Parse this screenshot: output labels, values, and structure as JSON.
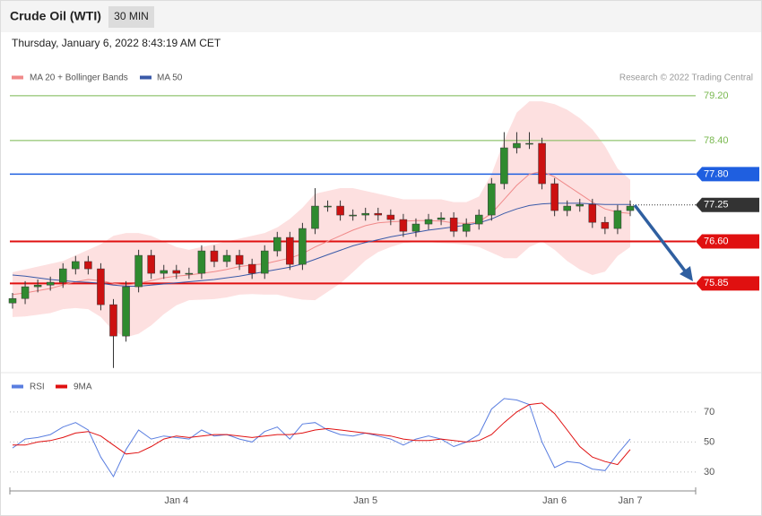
{
  "header": {
    "title": "Crude Oil (WTI)",
    "interval": "30 MIN",
    "timestamp": "Thursday, January 6, 2022 8:43:19 AM CET",
    "credit": "Research © 2022 Trading Central"
  },
  "chart_data": [
    {
      "type": "candlestick",
      "up_color": "#2f8a2f",
      "down_color": "#cc1111",
      "band_color": "#fde0e0",
      "ylim": [
        74.32,
        79.39
      ],
      "open": [
        75.5,
        75.58,
        75.79,
        75.82,
        75.87,
        76.11,
        76.24,
        76.11,
        75.47,
        74.91,
        75.79,
        76.35,
        76.03,
        76.08,
        76.03,
        76.03,
        76.43,
        76.24,
        76.35,
        76.19,
        76.03,
        76.43,
        76.67,
        76.19,
        76.83,
        77.23,
        77.23,
        77.07,
        77.07,
        77.1,
        77.07,
        76.99,
        76.78,
        76.91,
        76.99,
        77.02,
        76.78,
        76.91,
        77.07,
        77.63,
        78.27,
        78.35,
        78.35,
        77.63,
        77.15,
        77.23,
        77.26,
        76.94,
        76.83,
        77.15
      ],
      "high": [
        75.68,
        75.89,
        75.92,
        75.97,
        76.21,
        76.34,
        76.34,
        76.21,
        75.57,
        75.89,
        76.45,
        76.45,
        76.18,
        76.18,
        76.13,
        76.53,
        76.53,
        76.45,
        76.45,
        76.29,
        76.53,
        76.77,
        76.77,
        76.93,
        77.55,
        77.33,
        77.33,
        77.17,
        77.2,
        77.2,
        77.17,
        77.09,
        77.01,
        77.09,
        77.12,
        77.12,
        77.01,
        77.17,
        77.73,
        78.55,
        78.55,
        78.55,
        78.45,
        77.73,
        77.33,
        77.36,
        77.36,
        77.04,
        77.25,
        77.33
      ],
      "low": [
        75.4,
        75.48,
        75.69,
        75.72,
        75.77,
        76.01,
        76.01,
        75.37,
        74.34,
        74.81,
        75.69,
        75.93,
        75.93,
        75.93,
        75.93,
        75.93,
        76.14,
        76.14,
        76.09,
        75.93,
        75.93,
        76.33,
        76.09,
        76.09,
        76.73,
        77.13,
        76.97,
        76.97,
        76.97,
        76.97,
        76.89,
        76.68,
        76.68,
        76.81,
        76.89,
        76.68,
        76.68,
        76.81,
        76.97,
        77.53,
        78.17,
        78.25,
        77.53,
        77.05,
        77.05,
        77.13,
        76.84,
        76.73,
        76.73,
        77.05
      ],
      "close": [
        75.58,
        75.79,
        75.82,
        75.87,
        76.11,
        76.24,
        76.11,
        75.47,
        74.91,
        75.79,
        76.35,
        76.03,
        76.08,
        76.03,
        76.03,
        76.43,
        76.24,
        76.35,
        76.19,
        76.03,
        76.43,
        76.67,
        76.19,
        76.83,
        77.23,
        77.23,
        77.07,
        77.07,
        77.1,
        77.07,
        76.99,
        76.78,
        76.91,
        76.99,
        77.02,
        76.78,
        76.91,
        77.07,
        77.63,
        78.27,
        78.35,
        78.35,
        77.63,
        77.15,
        77.23,
        77.26,
        76.94,
        76.83,
        77.15,
        77.23
      ],
      "series": [
        {
          "name": "MA 20 + Bollinger Bands",
          "color": "#f08a8a",
          "values": [
            75.65,
            75.68,
            75.72,
            75.76,
            75.82,
            75.88,
            75.92,
            75.9,
            75.85,
            75.82,
            75.85,
            75.9,
            75.95,
            75.98,
            76.0,
            76.03,
            76.06,
            76.1,
            76.15,
            76.18,
            76.2,
            76.25,
            76.3,
            76.38,
            76.5,
            76.6,
            76.7,
            76.8,
            76.88,
            76.93,
            76.95,
            76.96,
            76.97,
            76.97,
            76.96,
            76.93,
            76.92,
            76.95,
            77.1,
            77.35,
            77.6,
            77.8,
            77.85,
            77.75,
            77.6,
            77.45,
            77.3,
            77.18,
            77.12,
            77.1
          ],
          "upper": [
            76.05,
            76.1,
            76.15,
            76.2,
            76.25,
            76.35,
            76.45,
            76.55,
            76.7,
            76.75,
            76.75,
            76.7,
            76.6,
            76.5,
            76.45,
            76.5,
            76.55,
            76.6,
            76.65,
            76.7,
            76.75,
            76.85,
            77.0,
            77.2,
            77.45,
            77.5,
            77.55,
            77.55,
            77.5,
            77.45,
            77.4,
            77.35,
            77.35,
            77.35,
            77.35,
            77.3,
            77.3,
            77.4,
            77.8,
            78.4,
            78.9,
            79.1,
            79.1,
            79.05,
            78.95,
            78.8,
            78.6,
            78.3,
            77.9,
            77.7
          ],
          "lower": [
            75.25,
            75.26,
            75.29,
            75.32,
            75.39,
            75.41,
            75.39,
            75.25,
            75.0,
            74.89,
            74.95,
            75.1,
            75.3,
            75.46,
            75.55,
            75.56,
            75.57,
            75.6,
            75.65,
            75.66,
            75.65,
            75.65,
            75.6,
            75.56,
            75.55,
            75.7,
            75.85,
            76.05,
            76.26,
            76.41,
            76.5,
            76.57,
            76.59,
            76.59,
            76.57,
            76.56,
            76.54,
            76.5,
            76.4,
            76.3,
            76.3,
            76.5,
            76.6,
            76.45,
            76.25,
            76.1,
            76.0,
            76.06,
            76.34,
            76.5
          ]
        },
        {
          "name": "MA 50",
          "color": "#3a5aa8",
          "values": [
            76.0,
            75.98,
            75.95,
            75.92,
            75.9,
            75.88,
            75.87,
            75.85,
            75.82,
            75.8,
            75.8,
            75.82,
            75.84,
            75.86,
            75.88,
            75.9,
            75.92,
            75.95,
            75.98,
            76.02,
            76.06,
            76.1,
            76.14,
            76.2,
            76.28,
            76.36,
            76.44,
            76.52,
            76.58,
            76.63,
            76.68,
            76.72,
            76.76,
            76.8,
            76.83,
            76.86,
            76.89,
            76.93,
            77.0,
            77.1,
            77.18,
            77.24,
            77.27,
            77.28,
            77.28,
            77.28,
            77.27,
            77.26,
            77.26,
            77.26
          ]
        }
      ],
      "levels": [
        {
          "value": 79.2,
          "label": "79.20",
          "color": "#79b84f",
          "box": false,
          "style": "thin"
        },
        {
          "value": 78.4,
          "label": "78.40",
          "color": "#79b84f",
          "box": false,
          "style": "thin"
        },
        {
          "value": 77.8,
          "label": "77.80",
          "color": "#1f5fe0",
          "box": true,
          "style": "medium"
        },
        {
          "value": 77.25,
          "label": "77.25",
          "color": "#333333",
          "box": true,
          "style": "dotted"
        },
        {
          "value": 76.6,
          "label": "76.60",
          "color": "#e01010",
          "box": true,
          "style": "thick"
        },
        {
          "value": 75.85,
          "label": "75.85",
          "color": "#e01010",
          "box": true,
          "style": "thick"
        }
      ]
    },
    {
      "type": "line",
      "ylim": [
        22.2,
        81.9
      ],
      "yticks": [
        30,
        50,
        70
      ],
      "grid": true,
      "categories": [
        null,
        null,
        null,
        null,
        null,
        null,
        null,
        null,
        null,
        null,
        null,
        null,
        null,
        "Jan 4",
        null,
        null,
        null,
        null,
        null,
        null,
        null,
        null,
        null,
        null,
        null,
        null,
        null,
        null,
        "Jan 5",
        null,
        null,
        null,
        null,
        null,
        null,
        null,
        null,
        null,
        null,
        null,
        null,
        null,
        null,
        "Jan 6",
        null,
        null,
        null,
        null,
        null,
        "Jan 7"
      ],
      "series": [
        {
          "name": "RSI",
          "color": "#5a7ee0",
          "values": [
            46,
            52,
            53,
            55,
            60,
            63,
            58,
            40,
            27,
            45,
            58,
            52,
            54,
            53,
            52,
            58,
            54,
            55,
            52,
            50,
            57,
            60,
            52,
            62,
            63,
            58,
            55,
            54,
            56,
            54,
            52,
            48,
            52,
            54,
            52,
            47,
            50,
            55,
            72,
            79,
            78,
            75,
            50,
            33,
            37,
            36,
            32,
            31,
            42,
            52
          ]
        },
        {
          "name": "9MA",
          "color": "#e01010",
          "values": [
            48,
            48,
            50,
            51,
            53,
            56,
            57,
            54,
            48,
            42,
            43,
            47,
            52,
            54,
            53,
            54,
            55,
            55,
            54,
            53,
            54,
            55,
            55,
            56,
            58,
            59,
            58,
            57,
            56,
            55,
            54,
            52,
            51,
            51,
            52,
            51,
            50,
            51,
            55,
            63,
            70,
            75,
            76,
            69,
            58,
            47,
            40,
            37,
            35,
            45
          ]
        }
      ]
    }
  ]
}
